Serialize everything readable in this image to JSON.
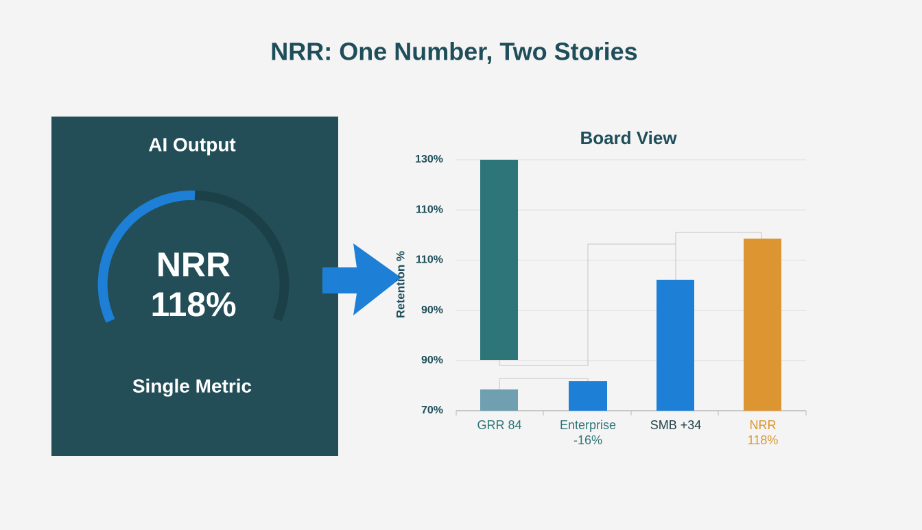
{
  "header": {
    "title": "NRR: One Number, Two Stories"
  },
  "left_panel": {
    "title": "AI Output",
    "gauge_lines": [
      "NRR",
      "118%"
    ],
    "caption": "Single Metric"
  },
  "board_view": {
    "title": "Board View",
    "axis_label": "Retention %",
    "axis_labels": [
      "130%",
      "110%",
      "110%",
      "90%",
      "90%",
      "70%"
    ],
    "categories": [
      [
        "GRR 84"
      ],
      [
        "Enterprise",
        "-16%"
      ],
      [
        "SMB +34"
      ],
      [
        "NRR",
        "118%"
      ]
    ]
  }
}
